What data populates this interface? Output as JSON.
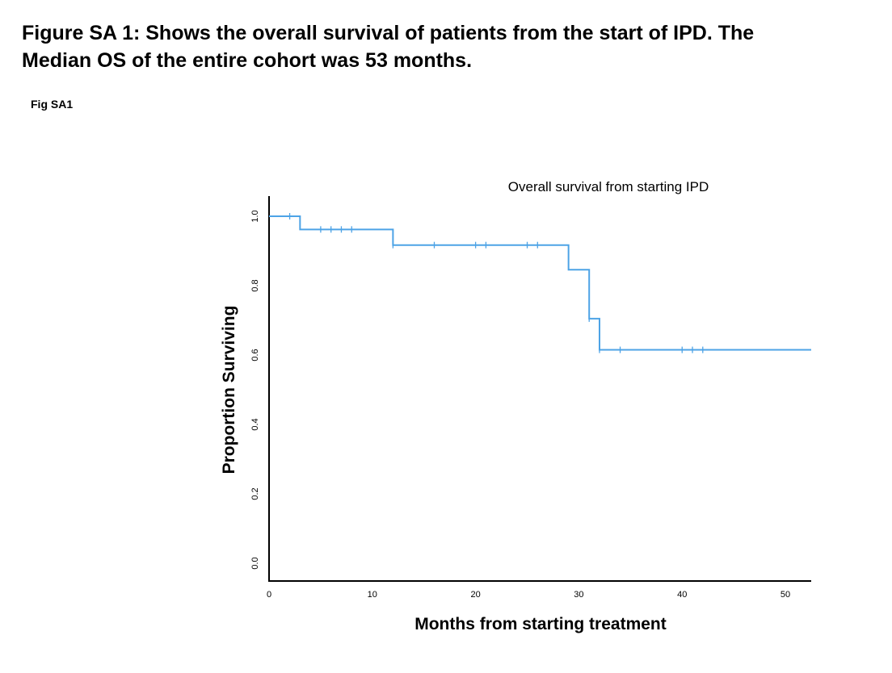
{
  "figure": {
    "caption_line1": "Figure SA 1: Shows the overall survival of patients from the start of IPD. The",
    "caption_line2": "Median OS of the entire cohort was 53 months.",
    "label": "Fig SA1"
  },
  "chart_data": {
    "type": "line",
    "title": "Overall survival from starting IPD",
    "xlabel": "Months from starting treatment",
    "ylabel": "Proportion Surviving",
    "xlim": [
      0,
      52.5
    ],
    "ylim": [
      0,
      1.0
    ],
    "x_ticks": [
      "0",
      "10",
      "20",
      "30",
      "40",
      "50"
    ],
    "y_ticks": [
      "0.0",
      "0.2",
      "0.4",
      "0.6",
      "0.8",
      "1.0"
    ],
    "grid": false,
    "series_color": "#4da3e6",
    "steps": [
      {
        "x": 0,
        "y": 1.0
      },
      {
        "x": 3,
        "y": 0.962
      },
      {
        "x": 12,
        "y": 0.917
      },
      {
        "x": 29,
        "y": 0.846
      },
      {
        "x": 31,
        "y": 0.705
      },
      {
        "x": 32,
        "y": 0.615
      },
      {
        "x": 52.5,
        "y": 0.615
      }
    ],
    "censored": [
      {
        "x": 2,
        "y": 1.0
      },
      {
        "x": 5,
        "y": 0.962
      },
      {
        "x": 6,
        "y": 0.962
      },
      {
        "x": 7,
        "y": 0.962
      },
      {
        "x": 8,
        "y": 0.962
      },
      {
        "x": 12,
        "y": 0.917
      },
      {
        "x": 16,
        "y": 0.917
      },
      {
        "x": 20,
        "y": 0.917
      },
      {
        "x": 21,
        "y": 0.917
      },
      {
        "x": 25,
        "y": 0.917
      },
      {
        "x": 26,
        "y": 0.917
      },
      {
        "x": 31,
        "y": 0.705
      },
      {
        "x": 32,
        "y": 0.615
      },
      {
        "x": 34,
        "y": 0.615
      },
      {
        "x": 40,
        "y": 0.615
      },
      {
        "x": 41,
        "y": 0.615
      },
      {
        "x": 42,
        "y": 0.615
      }
    ]
  }
}
